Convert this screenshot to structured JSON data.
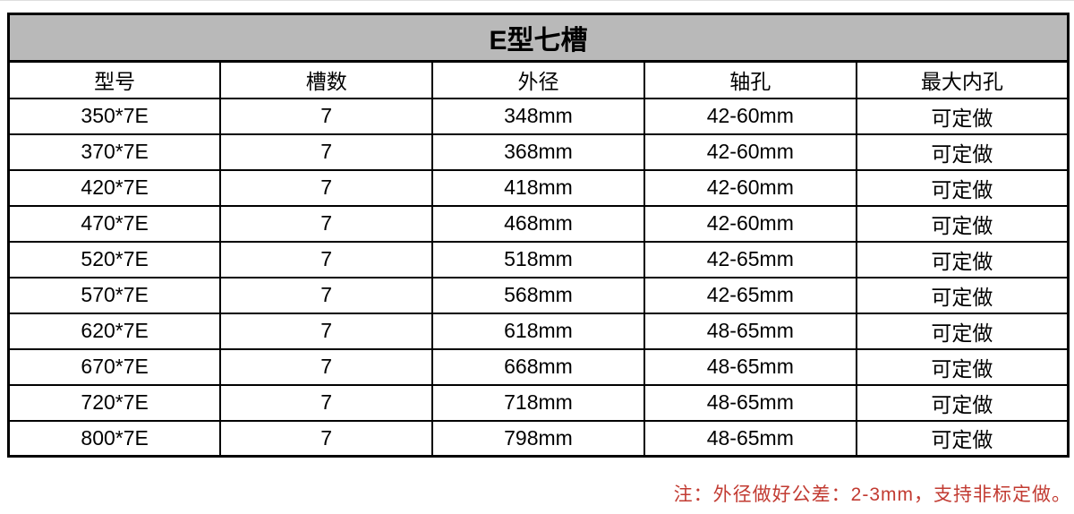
{
  "table": {
    "title": "E型七槽",
    "headers": [
      "型号",
      "槽数",
      "外径",
      "轴孔",
      "最大内孔"
    ],
    "rows": [
      [
        "350*7E",
        "7",
        "348mm",
        "42-60mm",
        "可定做"
      ],
      [
        "370*7E",
        "7",
        "368mm",
        "42-60mm",
        "可定做"
      ],
      [
        "420*7E",
        "7",
        "418mm",
        "42-60mm",
        "可定做"
      ],
      [
        "470*7E",
        "7",
        "468mm",
        "42-60mm",
        "可定做"
      ],
      [
        "520*7E",
        "7",
        "518mm",
        "42-65mm",
        "可定做"
      ],
      [
        "570*7E",
        "7",
        "568mm",
        "42-65mm",
        "可定做"
      ],
      [
        "620*7E",
        "7",
        "618mm",
        "48-65mm",
        "可定做"
      ],
      [
        "670*7E",
        "7",
        "668mm",
        "48-65mm",
        "可定做"
      ],
      [
        "720*7E",
        "7",
        "718mm",
        "48-65mm",
        "可定做"
      ],
      [
        "800*7E",
        "7",
        "798mm",
        "48-65mm",
        "可定做"
      ]
    ],
    "colors": {
      "title_background": "#b9b9b9",
      "border": "#000000",
      "text": "#000000"
    }
  },
  "note": {
    "text": "注：外径做好公差：2-3mm，支持非标定做。",
    "color": "#c23b32"
  }
}
